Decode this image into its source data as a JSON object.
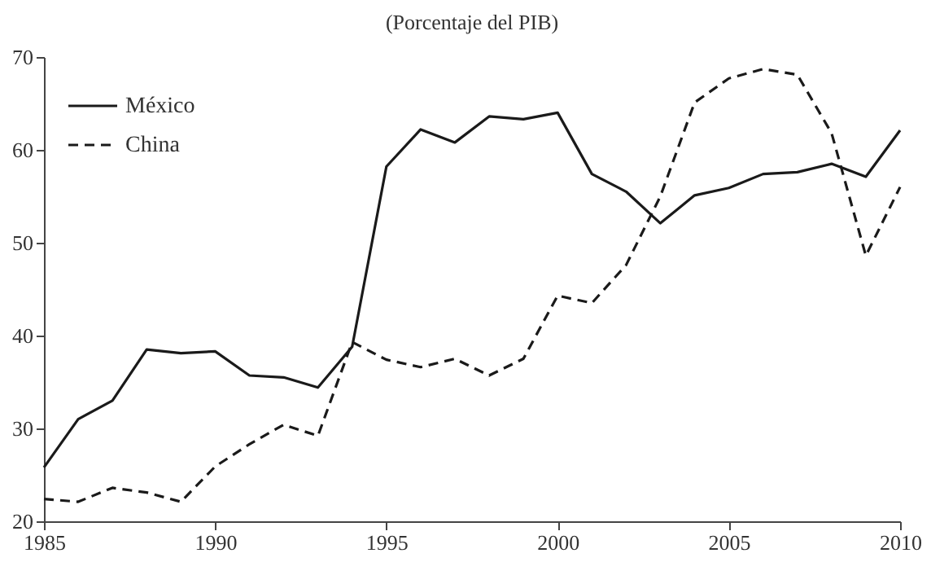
{
  "chart_data": {
    "type": "line",
    "title": "(Porcentaje del PIB)",
    "x": [
      1985,
      1986,
      1987,
      1988,
      1989,
      1990,
      1991,
      1992,
      1993,
      1994,
      1995,
      1996,
      1997,
      1998,
      1999,
      2000,
      2001,
      2002,
      2003,
      2004,
      2005,
      2006,
      2007,
      2008,
      2009,
      2010
    ],
    "series": [
      {
        "name": "México",
        "color": "#1a1a1a",
        "line_style": "solid",
        "values": [
          25.8,
          31,
          33,
          38.5,
          38.1,
          38.3,
          35.7,
          35.5,
          34.4,
          38.8,
          58.2,
          62.2,
          60.8,
          63.6,
          63.3,
          64,
          57.4,
          55.5,
          52.1,
          55.1,
          55.9,
          57.4,
          57.6,
          58.5,
          57.1,
          62.1
        ]
      },
      {
        "name": "China",
        "color": "#1a1a1a",
        "line_style": "dashed",
        "values": [
          22.4,
          22.1,
          23.6,
          23.1,
          22.1,
          25.9,
          28.3,
          30.4,
          29.2,
          39.3,
          37.4,
          36.6,
          37.5,
          35.7,
          37.5,
          44.3,
          43.5,
          47.6,
          55,
          65.1,
          67.7,
          68.7,
          68.1,
          61.8,
          48.6,
          56
        ]
      }
    ],
    "xlim": [
      1985,
      2010
    ],
    "xticks": [
      1985,
      1990,
      1995,
      2000,
      2005,
      2010
    ],
    "ylim": [
      20,
      70
    ],
    "yticks": [
      20,
      30,
      40,
      50,
      60,
      70
    ],
    "grid": false,
    "legend": "top left",
    "marker": "none"
  }
}
